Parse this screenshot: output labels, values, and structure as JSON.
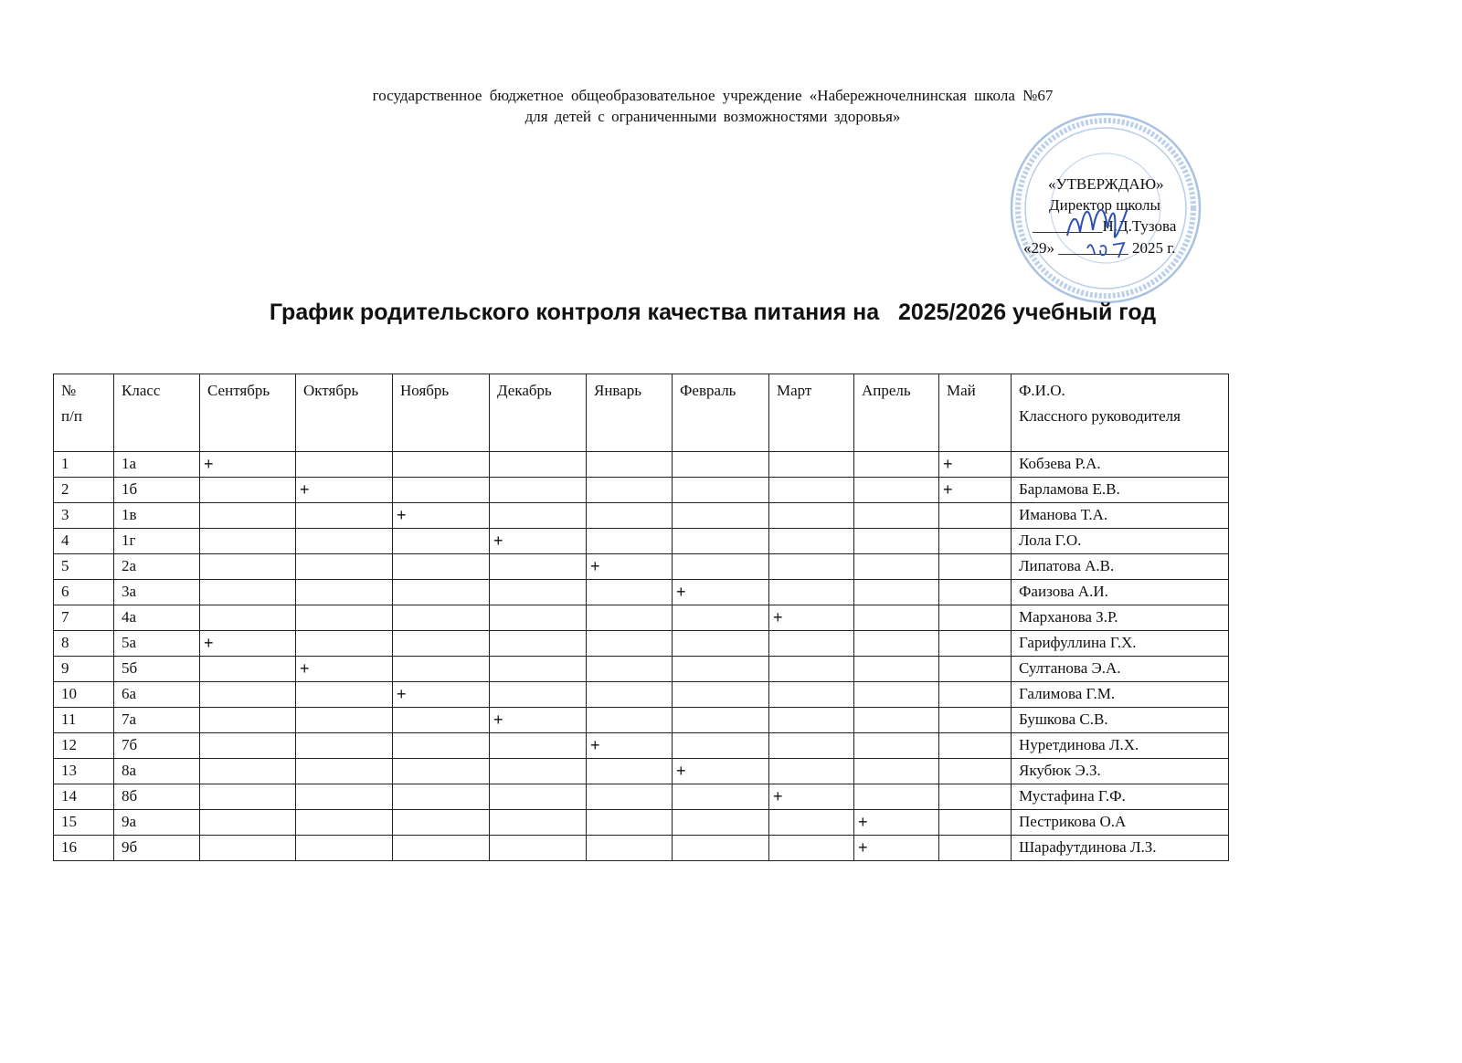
{
  "header": {
    "line1": "государственное  бюджетное      общеобразовательное   учреждение   «Набережночелнинская  школа №67",
    "line2": "для детей  с ограниченными    возможностями здоровья»"
  },
  "approval": {
    "label": "«УТВЕРЖДАЮ»",
    "position": "Директор школы",
    "name_line": "_________Н.Д.Тузова",
    "date_line": "«29» _________ 2025  г.",
    "handwritten_day": "29",
    "handwritten_month": "07"
  },
  "stamp_color": "#8fb0d8",
  "ink_color": "#2a4fb5",
  "title": "График родительского контроля качества питания на   2025/2026 учебный год",
  "table": {
    "columns": [
      "№\nп/п",
      "Класс",
      "Сентябрь",
      "Октябрь",
      "Ноябрь",
      "Декабрь",
      "Январь",
      "Февраль",
      "Март",
      "Апрель",
      "Май",
      "Ф.И.О.\nКлассного руководителя"
    ],
    "rows": [
      {
        "n": "1",
        "cls": "1а",
        "marks": [
          "+",
          "",
          "",
          "",
          "",
          "",
          "",
          "",
          "+"
        ],
        "teacher": "Кобзева Р.А."
      },
      {
        "n": "2",
        "cls": "1б",
        "marks": [
          "",
          "+",
          "",
          "",
          "",
          "",
          "",
          "",
          "+"
        ],
        "teacher": "Барламова Е.В."
      },
      {
        "n": "3",
        "cls": "1в",
        "marks": [
          "",
          "",
          "+",
          "",
          "",
          "",
          "",
          "",
          ""
        ],
        "teacher": "Иманова Т.А."
      },
      {
        "n": "4",
        "cls": "1г",
        "marks": [
          "",
          "",
          "",
          "+",
          "",
          "",
          "",
          "",
          ""
        ],
        "teacher": "Лола Г.О."
      },
      {
        "n": "5",
        "cls": "2а",
        "marks": [
          "",
          "",
          "",
          "",
          "+",
          "",
          "",
          "",
          ""
        ],
        "teacher": "Липатова А.В."
      },
      {
        "n": "6",
        "cls": "3а",
        "marks": [
          "",
          "",
          "",
          "",
          "",
          "+",
          "",
          "",
          ""
        ],
        "teacher": "Фаизова А.И."
      },
      {
        "n": "7",
        "cls": "4а",
        "marks": [
          "",
          "",
          "",
          "",
          "",
          "",
          "+",
          "",
          ""
        ],
        "teacher": "Марханова З.Р."
      },
      {
        "n": "8",
        "cls": "5а",
        "marks": [
          "+",
          "",
          "",
          "",
          "",
          "",
          "",
          "",
          ""
        ],
        "teacher": "Гарифуллина Г.Х."
      },
      {
        "n": "9",
        "cls": "5б",
        "marks": [
          "",
          "+",
          "",
          "",
          "",
          "",
          "",
          "",
          ""
        ],
        "teacher": "Султанова Э.А."
      },
      {
        "n": "10",
        "cls": "6а",
        "marks": [
          "",
          "",
          "+",
          "",
          "",
          "",
          "",
          "",
          ""
        ],
        "teacher": "Галимова Г.М."
      },
      {
        "n": "11",
        "cls": "7а",
        "marks": [
          "",
          "",
          "",
          "+",
          "",
          "",
          "",
          "",
          ""
        ],
        "teacher": "Бушкова С.В."
      },
      {
        "n": "12",
        "cls": "7б",
        "marks": [
          "",
          "",
          "",
          "",
          "+",
          "",
          "",
          "",
          ""
        ],
        "teacher": "Нуретдинова Л.Х."
      },
      {
        "n": "13",
        "cls": "8а",
        "marks": [
          "",
          "",
          "",
          "",
          "",
          "+",
          "",
          "",
          ""
        ],
        "teacher": "Якубюк Э.З."
      },
      {
        "n": "14",
        "cls": "8б",
        "marks": [
          "",
          "",
          "",
          "",
          "",
          "",
          "+",
          "",
          ""
        ],
        "teacher": "Мустафина Г.Ф."
      },
      {
        "n": "15",
        "cls": "9а",
        "marks": [
          "",
          "",
          "",
          "",
          "",
          "",
          "",
          "+",
          ""
        ],
        "teacher": "Пестрикова О.А"
      },
      {
        "n": "16",
        "cls": "9б",
        "marks": [
          "",
          "",
          "",
          "",
          "",
          "",
          "",
          "+",
          ""
        ],
        "teacher": "Шарафутдинова Л.З."
      }
    ]
  }
}
